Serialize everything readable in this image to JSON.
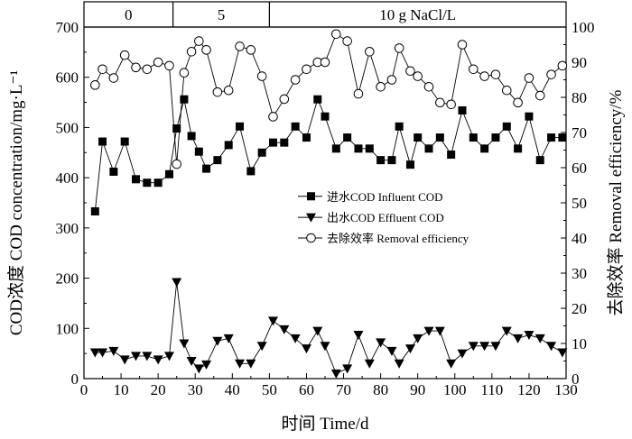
{
  "chart_data": {
    "type": "line",
    "xlabel": "时间 Time/d",
    "ylabel": "COD浓度 COD concentration/mg·L⁻¹",
    "y2label": "去除效率 Removal efficiency/%",
    "xlim": [
      0,
      130
    ],
    "ylim": [
      0,
      700
    ],
    "y2lim": [
      0,
      100
    ],
    "xticks": [
      0,
      10,
      20,
      30,
      40,
      50,
      60,
      70,
      80,
      90,
      100,
      110,
      120,
      130
    ],
    "yticks": [
      0,
      100,
      200,
      300,
      400,
      500,
      600,
      700
    ],
    "y2ticks": [
      0,
      10,
      20,
      30,
      40,
      50,
      60,
      70,
      80,
      90,
      100
    ],
    "grid": false,
    "legend_position": "center",
    "bands": [
      {
        "label": "0",
        "x_start": 0,
        "x_end": 24
      },
      {
        "label": "5",
        "x_start": 24,
        "x_end": 50
      },
      {
        "label": "10 g NaCl/L",
        "x_start": 50,
        "x_end": 130
      }
    ],
    "series": [
      {
        "name": "进水COD Influent COD",
        "axis": "left",
        "marker": "square-filled",
        "x": [
          3,
          5,
          8,
          11,
          14,
          17,
          20,
          23,
          25,
          27,
          29,
          31,
          33,
          36,
          39,
          42,
          45,
          48,
          51,
          54,
          57,
          60,
          63,
          65,
          68,
          71,
          74,
          77,
          80,
          83,
          85,
          88,
          90,
          93,
          96,
          99,
          102,
          105,
          108,
          111,
          114,
          117,
          120,
          123,
          126,
          129
        ],
        "values": [
          333,
          472,
          412,
          472,
          397,
          390,
          390,
          407,
          498,
          556,
          483,
          452,
          418,
          435,
          465,
          502,
          413,
          450,
          470,
          470,
          502,
          480,
          556,
          522,
          458,
          480,
          458,
          458,
          435,
          435,
          502,
          426,
          480,
          458,
          480,
          446,
          534,
          480,
          458,
          480,
          502,
          458,
          522,
          435,
          480,
          480
        ]
      },
      {
        "name": "出水COD Effluent COD",
        "axis": "left",
        "marker": "triangle-down-filled",
        "x": [
          3,
          5,
          8,
          11,
          14,
          17,
          20,
          23,
          25,
          27,
          29,
          31,
          33,
          36,
          39,
          42,
          45,
          48,
          51,
          54,
          57,
          60,
          63,
          65,
          68,
          71,
          74,
          77,
          80,
          83,
          85,
          88,
          90,
          93,
          96,
          99,
          102,
          105,
          108,
          111,
          114,
          117,
          120,
          123,
          126,
          129
        ],
        "values": [
          52,
          52,
          55,
          38,
          45,
          45,
          38,
          45,
          192,
          70,
          35,
          20,
          28,
          75,
          80,
          30,
          30,
          65,
          115,
          98,
          80,
          60,
          95,
          65,
          10,
          20,
          87,
          30,
          72,
          55,
          30,
          60,
          80,
          95,
          95,
          30,
          50,
          65,
          65,
          65,
          95,
          80,
          87,
          80,
          65,
          52
        ]
      },
      {
        "name": "去除效率 Removal efficiency",
        "axis": "right",
        "marker": "circle-open",
        "x": [
          3,
          5,
          8,
          11,
          14,
          17,
          20,
          23,
          25,
          27,
          29,
          31,
          33,
          36,
          39,
          42,
          45,
          48,
          51,
          54,
          57,
          60,
          63,
          65,
          68,
          71,
          74,
          77,
          80,
          83,
          85,
          88,
          90,
          93,
          96,
          99,
          102,
          105,
          108,
          111,
          114,
          117,
          120,
          123,
          126,
          129
        ],
        "values": [
          83.5,
          88,
          85.5,
          92,
          88.5,
          88,
          90,
          89,
          61,
          87,
          93,
          96,
          93.5,
          81.5,
          82,
          94.5,
          93.5,
          86,
          74.5,
          79.5,
          85,
          88,
          90,
          90,
          98,
          96,
          81,
          93,
          83,
          85,
          94,
          87.5,
          86,
          83,
          78.5,
          78,
          95,
          88,
          86,
          86.5,
          82,
          78.5,
          85.5,
          80.5,
          86.5,
          89
        ]
      }
    ]
  }
}
